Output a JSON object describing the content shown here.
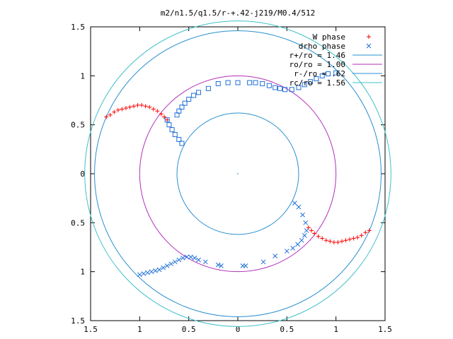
{
  "chart_data": {
    "type": "scatter",
    "title": "m2/n1.5/q1.5/r-+.42-j219/M0.4/512",
    "xlim": [
      -1.5,
      1.5
    ],
    "ylim": [
      -1.5,
      1.5
    ],
    "x_ticks": [
      -1.5,
      -1,
      -0.5,
      0,
      0.5,
      1,
      1.5
    ],
    "y_ticks": [
      -1.5,
      -1,
      -0.5,
      0,
      0.5,
      1,
      1.5
    ],
    "x_tick_labels": [
      "1.5",
      "1",
      "0.5",
      "0",
      "0.5",
      "1",
      "1.5"
    ],
    "y_tick_labels": [
      "1.5",
      "1",
      "0.5",
      "0",
      "0.5",
      "1",
      "1.5"
    ],
    "grid": false,
    "legend_position": "top-right",
    "circles": [
      {
        "label": "r+/ro = 1.46",
        "radius": 1.46,
        "color": "#2a8fd0"
      },
      {
        "label": "ro/ro = 1.00",
        "radius": 1.0,
        "color": "#b22fb8"
      },
      {
        "label": "r-/ro = .62",
        "radius": 0.62,
        "color": "#2a8fd0"
      },
      {
        "label": "rc/ro = 1.56",
        "radius": 1.56,
        "color": "#3fc0c8"
      }
    ],
    "series": [
      {
        "name": "W phase",
        "marker": "plus",
        "color": "#ff0000",
        "points": [
          [
            -1.34,
            0.58
          ],
          [
            -1.3,
            0.6
          ],
          [
            -1.26,
            0.63
          ],
          [
            -1.22,
            0.65
          ],
          [
            -1.18,
            0.66
          ],
          [
            -1.14,
            0.67
          ],
          [
            -1.1,
            0.68
          ],
          [
            -1.06,
            0.69
          ],
          [
            -1.02,
            0.7
          ],
          [
            -0.98,
            0.7
          ],
          [
            -0.94,
            0.69
          ],
          [
            -0.9,
            0.68
          ],
          [
            -0.86,
            0.66
          ],
          [
            -0.82,
            0.64
          ],
          [
            -0.78,
            0.61
          ],
          [
            -0.75,
            0.58
          ],
          [
            -0.72,
            0.55
          ],
          [
            1.34,
            -0.58
          ],
          [
            1.3,
            -0.6
          ],
          [
            1.26,
            -0.63
          ],
          [
            1.22,
            -0.65
          ],
          [
            1.18,
            -0.66
          ],
          [
            1.14,
            -0.67
          ],
          [
            1.1,
            -0.68
          ],
          [
            1.06,
            -0.69
          ],
          [
            1.02,
            -0.7
          ],
          [
            0.98,
            -0.7
          ],
          [
            0.94,
            -0.69
          ],
          [
            0.9,
            -0.68
          ],
          [
            0.86,
            -0.66
          ],
          [
            0.82,
            -0.64
          ],
          [
            0.78,
            -0.61
          ],
          [
            0.75,
            -0.58
          ],
          [
            0.72,
            -0.55
          ]
        ]
      },
      {
        "name": "drho phase",
        "marker": "x",
        "color": "#1f6fd8",
        "points": [
          [
            -1.0,
            -1.03
          ],
          [
            -0.96,
            -1.02
          ],
          [
            -0.92,
            -1.01
          ],
          [
            -0.88,
            -1.0
          ],
          [
            -0.84,
            -0.99
          ],
          [
            -0.8,
            -0.98
          ],
          [
            -0.76,
            -0.96
          ],
          [
            -0.72,
            -0.94
          ],
          [
            -0.68,
            -0.92
          ],
          [
            -0.64,
            -0.9
          ],
          [
            -0.6,
            -0.88
          ],
          [
            -0.56,
            -0.86
          ],
          [
            -0.52,
            -0.85
          ],
          [
            -0.48,
            -0.85
          ],
          [
            -0.44,
            -0.86
          ],
          [
            -0.4,
            -0.88
          ],
          [
            -0.33,
            -0.9
          ],
          [
            -0.2,
            -0.93
          ],
          [
            -0.17,
            -0.94
          ],
          [
            0.05,
            -0.94
          ],
          [
            0.08,
            -0.94
          ],
          [
            0.26,
            -0.9
          ],
          [
            0.38,
            -0.84
          ],
          [
            0.5,
            -0.79
          ],
          [
            0.56,
            -0.76
          ],
          [
            0.61,
            -0.72
          ],
          [
            0.65,
            -0.68
          ],
          [
            0.68,
            -0.63
          ],
          [
            0.7,
            -0.58
          ],
          [
            0.69,
            -0.5
          ],
          [
            0.66,
            -0.42
          ],
          [
            0.62,
            -0.34
          ],
          [
            0.58,
            -0.3
          ]
        ]
      },
      {
        "name": "drho phase (square)",
        "marker": "square",
        "color": "#1f6fd8",
        "points": [
          [
            -0.72,
            0.55
          ],
          [
            -0.7,
            0.5
          ],
          [
            -0.67,
            0.45
          ],
          [
            -0.64,
            0.4
          ],
          [
            -0.6,
            0.35
          ],
          [
            -0.57,
            0.31
          ],
          [
            -0.62,
            0.6
          ],
          [
            -0.6,
            0.64
          ],
          [
            -0.57,
            0.68
          ],
          [
            -0.54,
            0.72
          ],
          [
            -0.5,
            0.76
          ],
          [
            -0.45,
            0.8
          ],
          [
            -0.4,
            0.83
          ],
          [
            -0.3,
            0.87
          ],
          [
            -0.2,
            0.92
          ],
          [
            -0.1,
            0.93
          ],
          [
            0.0,
            0.93
          ],
          [
            0.12,
            0.93
          ],
          [
            0.18,
            0.93
          ],
          [
            0.25,
            0.92
          ],
          [
            0.32,
            0.9
          ],
          [
            0.38,
            0.88
          ],
          [
            0.43,
            0.87
          ],
          [
            0.48,
            0.86
          ],
          [
            0.55,
            0.86
          ],
          [
            0.62,
            0.88
          ],
          [
            0.68,
            0.91
          ],
          [
            0.74,
            0.94
          ],
          [
            0.8,
            0.97
          ],
          [
            0.86,
            1.0
          ],
          [
            0.92,
            1.02
          ],
          [
            1.0,
            1.03
          ]
        ]
      }
    ]
  }
}
